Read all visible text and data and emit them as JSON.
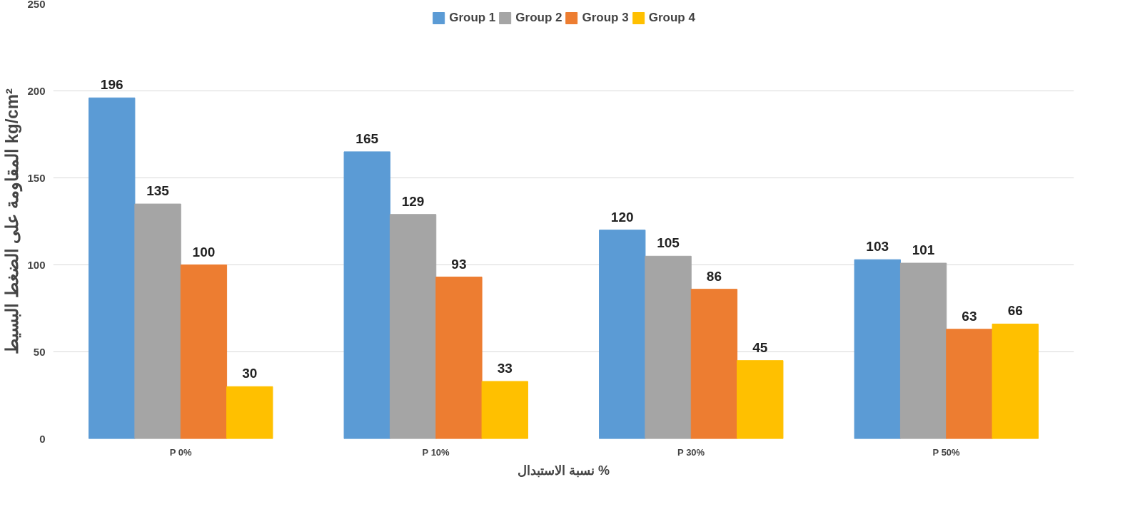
{
  "chart_data": {
    "type": "bar",
    "xlabel": "نسبة الاستبدال %",
    "ylabel": "المقاومة على الضغط البسيط kg/cm²",
    "categories": [
      "P 0%",
      "P 10%",
      "P 30%",
      "P 50%"
    ],
    "series": [
      {
        "name": "Group 1",
        "color": "#5b9bd5",
        "values": [
          196,
          165,
          120,
          103
        ]
      },
      {
        "name": "Group 2",
        "color": "#a5a5a5",
        "values": [
          135,
          129,
          105,
          101
        ]
      },
      {
        "name": "Group 3",
        "color": "#ed7d31",
        "values": [
          100,
          93,
          86,
          63
        ]
      },
      {
        "name": "Group 4",
        "color": "#ffc000",
        "values": [
          30,
          33,
          45,
          66
        ]
      }
    ],
    "ylim": [
      0,
      250
    ],
    "yticks": [
      0,
      50,
      100,
      150,
      200,
      250
    ],
    "grid": "y",
    "legend": "top",
    "data_labels": true
  }
}
